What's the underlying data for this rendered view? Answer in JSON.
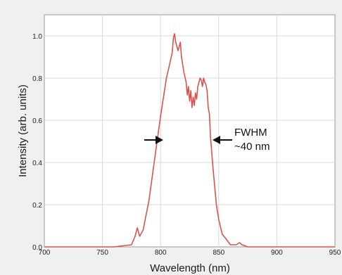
{
  "chart_data": {
    "type": "line",
    "title": "",
    "xlabel": "Wavelength (nm)",
    "ylabel": "Intensity (arb. units)",
    "xlim": [
      700,
      950
    ],
    "ylim": [
      0,
      1.1
    ],
    "x_ticks": [
      700,
      750,
      800,
      850,
      900,
      950
    ],
    "x_tick_labels": [
      "700",
      "750",
      "800",
      "850",
      "900",
      "950"
    ],
    "y_ticks": [
      0,
      0.2,
      0.4,
      0.6,
      0.8,
      1.0
    ],
    "y_tick_labels": [
      "0.0",
      "0.2",
      "0.4",
      "0.6",
      "0.8",
      "1.0"
    ],
    "grid": true,
    "line_color": "#d9534f",
    "series": [
      {
        "x": [
          700,
          760,
          775,
          778,
          780,
          782,
          785,
          790,
          795,
          800,
          805,
          808,
          810,
          811,
          812,
          813,
          815,
          817,
          818,
          820,
          822,
          823,
          824,
          825,
          826,
          827,
          828,
          829,
          830,
          831,
          832,
          833,
          834,
          835,
          836,
          837,
          838,
          839,
          840,
          841,
          842,
          843,
          845,
          848,
          850,
          853,
          856,
          860,
          865,
          868,
          870,
          875,
          900,
          950
        ],
        "y": [
          0.0,
          0.0,
          0.01,
          0.05,
          0.09,
          0.05,
          0.08,
          0.22,
          0.42,
          0.62,
          0.8,
          0.87,
          0.92,
          0.99,
          1.01,
          0.97,
          0.93,
          0.97,
          0.9,
          0.83,
          0.78,
          0.72,
          0.76,
          0.69,
          0.74,
          0.66,
          0.71,
          0.67,
          0.73,
          0.7,
          0.76,
          0.78,
          0.8,
          0.79,
          0.76,
          0.8,
          0.78,
          0.77,
          0.74,
          0.66,
          0.63,
          0.52,
          0.38,
          0.2,
          0.13,
          0.06,
          0.04,
          0.01,
          0.01,
          0.02,
          0.01,
          0.0,
          0.0,
          0.0
        ]
      }
    ],
    "annotations": [
      {
        "text_line1": "FWHM",
        "text_line2": "~40 nm"
      }
    ]
  }
}
